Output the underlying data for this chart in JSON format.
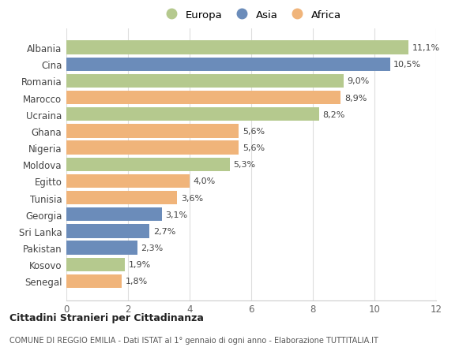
{
  "countries": [
    "Senegal",
    "Kosovo",
    "Pakistan",
    "Sri Lanka",
    "Georgia",
    "Tunisia",
    "Egitto",
    "Moldova",
    "Nigeria",
    "Ghana",
    "Ucraina",
    "Marocco",
    "Romania",
    "Cina",
    "Albania"
  ],
  "values": [
    1.8,
    1.9,
    2.3,
    2.7,
    3.1,
    3.6,
    4.0,
    5.3,
    5.6,
    5.6,
    8.2,
    8.9,
    9.0,
    10.5,
    11.1
  ],
  "labels": [
    "1,8%",
    "1,9%",
    "2,3%",
    "2,7%",
    "3,1%",
    "3,6%",
    "4,0%",
    "5,3%",
    "5,6%",
    "5,6%",
    "8,2%",
    "8,9%",
    "9,0%",
    "10,5%",
    "11,1%"
  ],
  "continents": [
    "Africa",
    "Europa",
    "Asia",
    "Asia",
    "Asia",
    "Africa",
    "Africa",
    "Europa",
    "Africa",
    "Africa",
    "Europa",
    "Africa",
    "Europa",
    "Asia",
    "Europa"
  ],
  "colors": {
    "Europa": "#b5c98e",
    "Asia": "#6b8cba",
    "Africa": "#f0b47a"
  },
  "legend_labels": [
    "Europa",
    "Asia",
    "Africa"
  ],
  "xlim": [
    0,
    12
  ],
  "xticks": [
    0,
    2,
    4,
    6,
    8,
    10,
    12
  ],
  "title": "Cittadini Stranieri per Cittadinanza",
  "subtitle": "COMUNE DI REGGIO EMILIA - Dati ISTAT al 1° gennaio di ogni anno - Elaborazione TUTTITALIA.IT",
  "background_color": "#ffffff",
  "bar_height": 0.82,
  "figsize": [
    6.0,
    4.6
  ],
  "dpi": 100
}
